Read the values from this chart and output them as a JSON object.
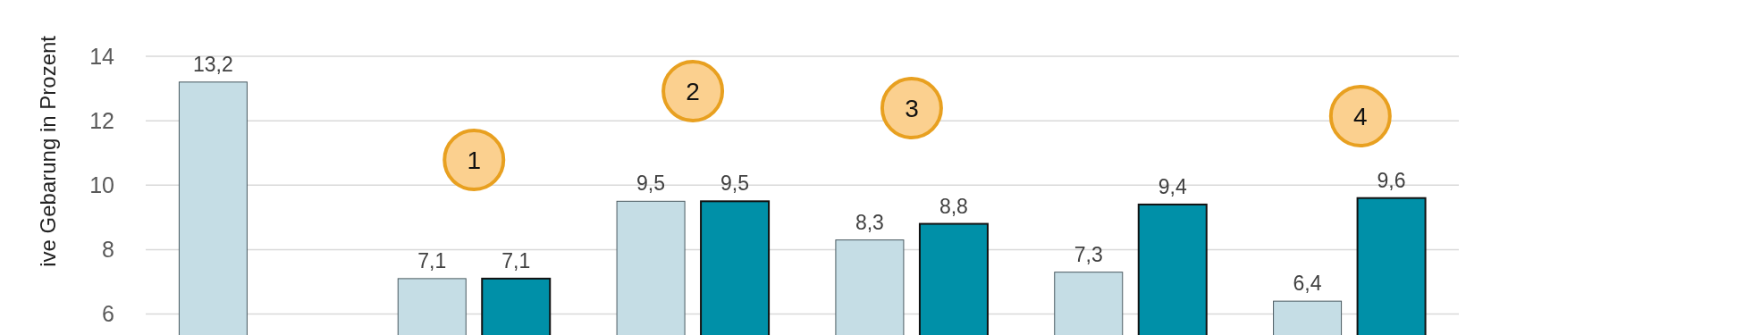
{
  "chart_data": {
    "type": "bar",
    "ylabel": "ive Gebarung in Prozent",
    "categories": [
      null,
      null,
      null,
      null,
      null,
      null
    ],
    "series": [
      {
        "color": "#c5dde5",
        "values": [
          13.2,
          7.1,
          9.5,
          8.3,
          7.3,
          6.4
        ],
        "value_labels": [
          "13,2",
          "7,1",
          "9,5",
          "8,3",
          "7,3",
          "6,4"
        ]
      },
      {
        "color": "#0090a8",
        "values": [
          null,
          7.1,
          9.5,
          8.8,
          9.4,
          9.6
        ],
        "value_labels": [
          null,
          "7,1",
          "9,5",
          "8,8",
          "9,4",
          "9,6"
        ]
      }
    ],
    "ylim": [
      5.35,
      14
    ],
    "yticks": [
      6,
      8,
      10,
      12,
      14
    ],
    "grid": "y",
    "annotations": [
      "1",
      "2",
      "3",
      "4"
    ]
  }
}
